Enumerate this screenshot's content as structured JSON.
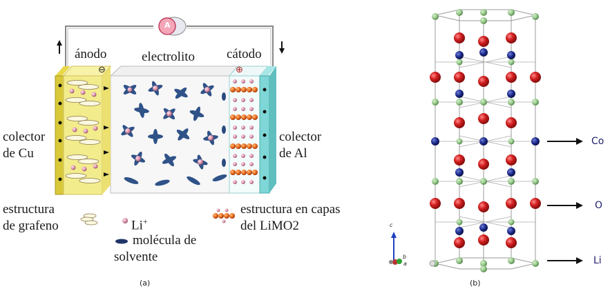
{
  "panel_a": {
    "ammeter": "A",
    "anode": "ánodo",
    "electrolyte": "electrolito",
    "cathode": "cátodo",
    "minus": "⊖",
    "plus": "⊕",
    "collector_cu_1": "colector",
    "collector_cu_2": "de Cu",
    "collector_al_1": "colector",
    "collector_al_2": "de Al",
    "legend_graphene_1": "estructura",
    "legend_graphene_2": "de grafeno",
    "legend_li": "Li",
    "legend_li_sup": "+",
    "legend_solvent_1": "molécula de",
    "legend_solvent_2": "solvente",
    "legend_layers_1": "estructura en capas",
    "legend_layers_2": "del LiMO2",
    "caption": "(a)"
  },
  "panel_b": {
    "label_co": "Co",
    "label_o": "O",
    "label_li": "Li",
    "axis_c": "c",
    "axis_b": "b",
    "axis_a": "a",
    "caption": "(b)"
  },
  "colors": {
    "anode_yellow": "#f3ec8c",
    "cathode_cyan": "#7fd6d6",
    "oxygen_red": "#cc1b1b",
    "cobalt_blue": "#1c2a8c",
    "lithium_green": "#8fc383",
    "solvent_blue": "#2a4a80",
    "li_pink": "#d98fa8"
  }
}
